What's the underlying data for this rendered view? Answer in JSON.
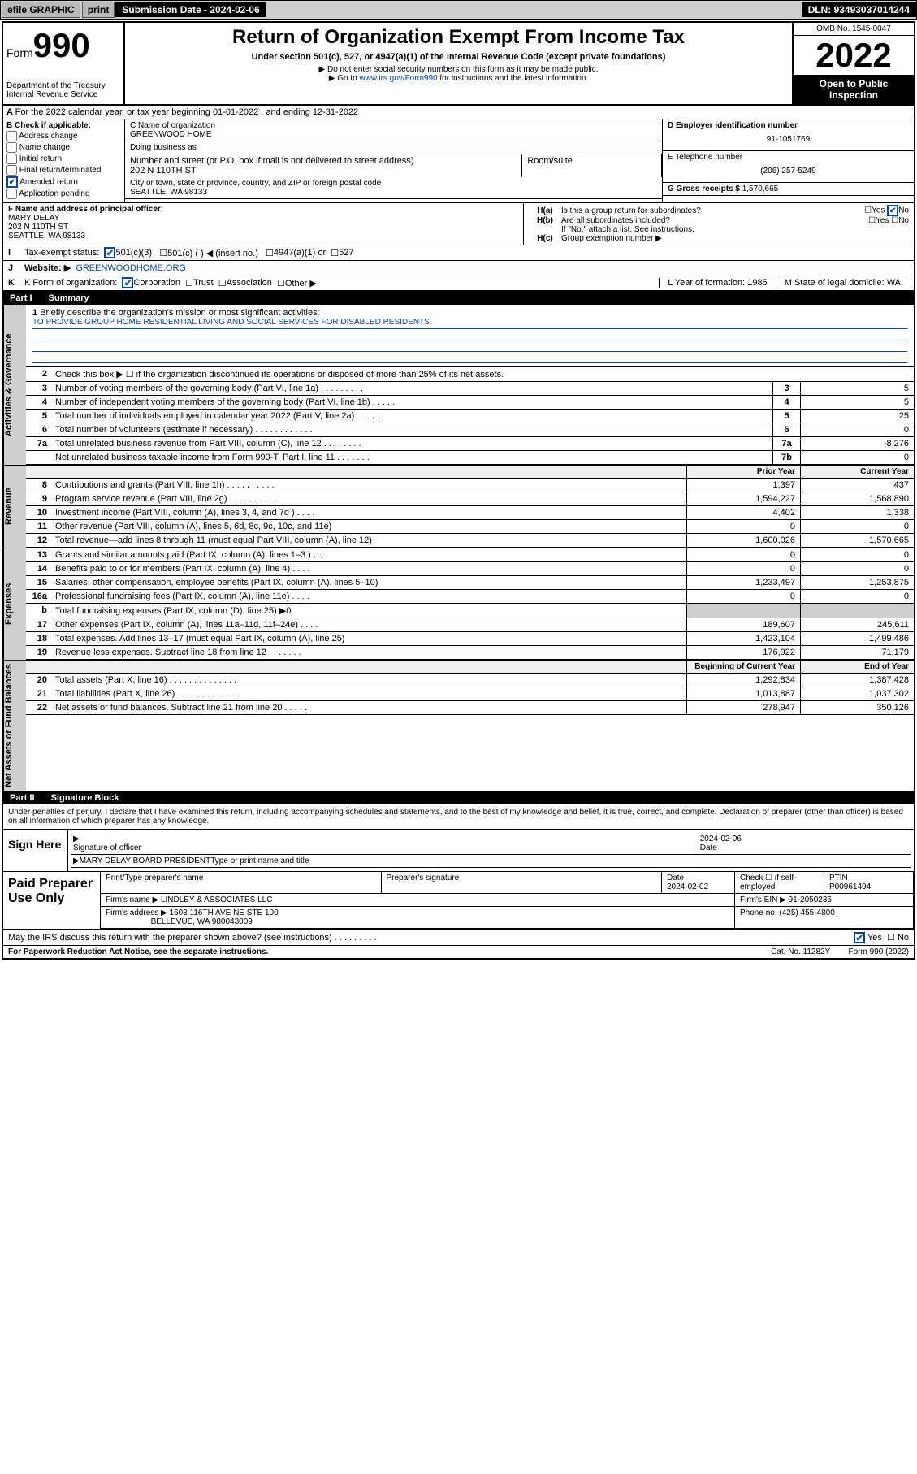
{
  "topbar": {
    "efile": "efile GRAPHIC",
    "print": "print",
    "sub_label": "Submission Date - 2024-02-06",
    "dln": "DLN: 93493037014244"
  },
  "header": {
    "form_word": "Form",
    "form_num": "990",
    "dept": "Department of the Treasury Internal Revenue Service",
    "title": "Return of Organization Exempt From Income Tax",
    "sub": "Under section 501(c), 527, or 4947(a)(1) of the Internal Revenue Code (except private foundations)",
    "note1": "▶ Do not enter social security numbers on this form as it may be made public.",
    "note2_pre": "▶ Go to ",
    "note2_link": "www.irs.gov/Form990",
    "note2_suf": " for instructions and the latest information.",
    "omb": "OMB No. 1545-0047",
    "year": "2022",
    "open": "Open to Public Inspection"
  },
  "A": {
    "text": "For the 2022 calendar year, or tax year beginning 01-01-2022    , and ending 12-31-2022"
  },
  "B": {
    "label": "B Check if applicable:",
    "opts": [
      "Address change",
      "Name change",
      "Initial return",
      "Final return/terminated",
      "Amended return",
      "Application pending"
    ],
    "checked_idx": 4
  },
  "C": {
    "name_label": "C Name of organization",
    "name": "GREENWOOD HOME",
    "dba_label": "Doing business as",
    "street_label": "Number and street (or P.O. box if mail is not delivered to street address)",
    "room_label": "Room/suite",
    "street": "202 N 110TH ST",
    "city_label": "City or town, state or province, country, and ZIP or foreign postal code",
    "city": "SEATTLE, WA  98133"
  },
  "D": {
    "label": "D Employer identification number",
    "val": "91-1051769"
  },
  "E": {
    "label": "E Telephone number",
    "val": "(206) 257-5249"
  },
  "G": {
    "label": "G Gross receipts $",
    "val": "1,570,665"
  },
  "F": {
    "label": "F  Name and address of principal officer:",
    "name": "MARY DELAY",
    "addr1": "202 N 110TH ST",
    "addr2": "SEATTLE, WA  98133"
  },
  "H": {
    "a": "Is this a group return for subordinates?",
    "b": "Are all subordinates included?",
    "b_note": "If \"No,\" attach a list. See instructions.",
    "c": "Group exemption number ▶",
    "yes": "Yes",
    "no": "No"
  },
  "I": {
    "label": "Tax-exempt status:",
    "o1": "501(c)(3)",
    "o2": "501(c) (  ) ◀ (insert no.)",
    "o3": "4947(a)(1) or",
    "o4": "527"
  },
  "J": {
    "label": "Website: ▶",
    "val": "GREENWOODHOME.ORG"
  },
  "K": {
    "label": "K Form of organization:",
    "o1": "Corporation",
    "o2": "Trust",
    "o3": "Association",
    "o4": "Other ▶"
  },
  "L": {
    "label": "L Year of formation:",
    "val": "1985"
  },
  "M": {
    "label": "M State of legal domicile:",
    "val": "WA"
  },
  "part1": {
    "title": "Part I",
    "sub": "Summary",
    "l1": "Briefly describe the organization's mission or most significant activities:",
    "mission": "TO PROVIDE GROUP HOME RESIDENTIAL LIVING AND SOCIAL SERVICES FOR DISABLED RESIDENTS.",
    "l2": "Check this box ▶ ☐  if the organization discontinued its operations or disposed of more than 25% of its net assets.",
    "lines_gov": [
      {
        "n": "3",
        "t": "Number of voting members of the governing body (Part VI, line 1a)   .    .    .    .    .    .    .    .    .",
        "b": "3",
        "v": "5"
      },
      {
        "n": "4",
        "t": "Number of independent voting members of the governing body (Part VI, line 1b)   .    .    .    .    .",
        "b": "4",
        "v": "5"
      },
      {
        "n": "5",
        "t": "Total number of individuals employed in calendar year 2022 (Part V, line 2a)   .    .    .    .    .    .",
        "b": "5",
        "v": "25"
      },
      {
        "n": "6",
        "t": "Total number of volunteers (estimate if necessary)   .    .    .    .    .    .    .    .    .    .    .    .",
        "b": "6",
        "v": "0"
      },
      {
        "n": "7a",
        "t": "Total unrelated business revenue from Part VIII, column (C), line 12   .    .    .    .    .    .    .    .",
        "b": "7a",
        "v": "-8,276"
      },
      {
        "n": "",
        "t": "Net unrelated business taxable income from Form 990-T, Part I, line 11   .    .    .    .    .    .    .",
        "b": "7b",
        "v": "0"
      }
    ],
    "col_prior": "Prior Year",
    "col_curr": "Current Year",
    "rev": [
      {
        "n": "8",
        "t": "Contributions and grants (Part VIII, line 1h)   .    .    .    .    .    .    .    .    .    .",
        "p": "1,397",
        "c": "437"
      },
      {
        "n": "9",
        "t": "Program service revenue (Part VIII, line 2g)   .    .    .    .    .    .    .    .    .    .",
        "p": "1,594,227",
        "c": "1,568,890"
      },
      {
        "n": "10",
        "t": "Investment income (Part VIII, column (A), lines 3, 4, and 7d )   .    .    .    .    .",
        "p": "4,402",
        "c": "1,338"
      },
      {
        "n": "11",
        "t": "Other revenue (Part VIII, column (A), lines 5, 6d, 8c, 9c, 10c, and 11e)",
        "p": "0",
        "c": "0"
      },
      {
        "n": "12",
        "t": "Total revenue—add lines 8 through 11 (must equal Part VIII, column (A), line 12)",
        "p": "1,600,026",
        "c": "1,570,665"
      }
    ],
    "exp": [
      {
        "n": "13",
        "t": "Grants and similar amounts paid (Part IX, column (A), lines 1–3 )   .    .    .",
        "p": "0",
        "c": "0"
      },
      {
        "n": "14",
        "t": "Benefits paid to or for members (Part IX, column (A), line 4)   .    .    .    .",
        "p": "0",
        "c": "0"
      },
      {
        "n": "15",
        "t": "Salaries, other compensation, employee benefits (Part IX, column (A), lines 5–10)",
        "p": "1,233,497",
        "c": "1,253,875"
      },
      {
        "n": "16a",
        "t": "Professional fundraising fees (Part IX, column (A), line 11e)   .    .    .    .",
        "p": "0",
        "c": "0"
      },
      {
        "n": "b",
        "t": "Total fundraising expenses (Part IX, column (D), line 25) ▶0",
        "p": "",
        "c": "",
        "grey": true
      },
      {
        "n": "17",
        "t": "Other expenses (Part IX, column (A), lines 11a–11d, 11f–24e)   .    .    .    .",
        "p": "189,607",
        "c": "245,611"
      },
      {
        "n": "18",
        "t": "Total expenses. Add lines 13–17 (must equal Part IX, column (A), line 25)",
        "p": "1,423,104",
        "c": "1,499,486"
      },
      {
        "n": "19",
        "t": "Revenue less expenses. Subtract line 18 from line 12   .    .    .    .    .    .    .",
        "p": "176,922",
        "c": "71,179"
      }
    ],
    "col_beg": "Beginning of Current Year",
    "col_end": "End of Year",
    "net": [
      {
        "n": "20",
        "t": "Total assets (Part X, line 16)   .    .    .    .    .    .    .    .    .    .    .    .    .    .",
        "p": "1,292,834",
        "c": "1,387,428"
      },
      {
        "n": "21",
        "t": "Total liabilities (Part X, line 26)   .    .    .    .    .    .    .    .    .    .    .    .    .",
        "p": "1,013,887",
        "c": "1,037,302"
      },
      {
        "n": "22",
        "t": "Net assets or fund balances. Subtract line 21 from line 20   .    .    .    .    .",
        "p": "278,947",
        "c": "350,126"
      }
    ],
    "tab_gov": "Activities & Governance",
    "tab_rev": "Revenue",
    "tab_exp": "Expenses",
    "tab_net": "Net Assets or Fund Balances"
  },
  "part2": {
    "title": "Part II",
    "sub": "Signature Block",
    "note": "Under penalties of perjury, I declare that I have examined this return, including accompanying schedules and statements, and to the best of my knowledge and belief, it is true, correct, and complete. Declaration of preparer (other than officer) is based on all information of which preparer has any knowledge.",
    "sign_here": "Sign Here",
    "sig_of": "Signature of officer",
    "date": "Date",
    "sig_date": "2024-02-06",
    "name_title_lbl": "Type or print name and title",
    "name_title": "MARY DELAY  BOARD PRESIDENT",
    "paid": "Paid Preparer Use Only",
    "prep_name_lbl": "Print/Type preparer's name",
    "prep_sig_lbl": "Preparer's signature",
    "prep_date_lbl": "Date",
    "prep_date": "2024-02-02",
    "self_emp": "Check ☐ if self-employed",
    "ptin_lbl": "PTIN",
    "ptin": "P00961494",
    "firm_name_lbl": "Firm's name    ▶",
    "firm_name": "LINDLEY & ASSOCIATES LLC",
    "firm_ein_lbl": "Firm's EIN ▶",
    "firm_ein": "91-2050235",
    "firm_addr_lbl": "Firm's address ▶",
    "firm_addr1": "1603 116TH AVE NE STE 100",
    "firm_addr2": "BELLEVUE, WA  980043009",
    "phone_lbl": "Phone no.",
    "phone": "(425) 455-4800",
    "irs_q": "May the IRS discuss this return with the preparer shown above? (see instructions)   .    .    .    .    .    .    .    .    .",
    "paperwork": "For Paperwork Reduction Act Notice, see the separate instructions.",
    "cat": "Cat. No. 11282Y",
    "form_foot": "Form 990 (2022)"
  }
}
